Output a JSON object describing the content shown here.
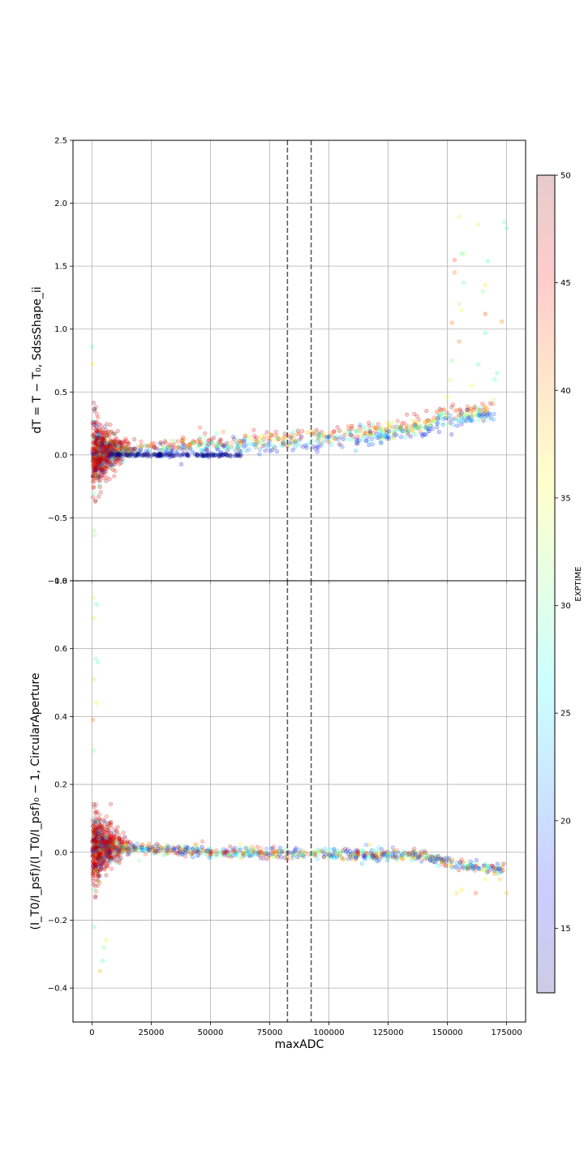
{
  "chart_data": [
    {
      "type": "scatter",
      "ylabel": "dT = T − T₀, SdssShape_ii",
      "xlabel": "",
      "xlim": [
        -8000,
        183000
      ],
      "ylim": [
        -1.0,
        2.5
      ],
      "y_tick_labels": [
        "2.5",
        "2.0",
        "1.5",
        "1.0",
        "0.5",
        "0.0",
        "−0.5",
        "−1.0"
      ],
      "y_ticks": [
        2.5,
        2.0,
        1.5,
        1.0,
        0.5,
        0.0,
        -0.5,
        -1.0
      ],
      "x_ticks": [
        0,
        25000,
        50000,
        75000,
        100000,
        125000,
        150000,
        175000
      ],
      "grid": true,
      "vertical_lines": [
        82500,
        92500
      ],
      "trend": [
        {
          "x": 500,
          "y": 0.0
        },
        {
          "x": 5000,
          "y": 0.03
        },
        {
          "x": 25000,
          "y": 0.05
        },
        {
          "x": 50000,
          "y": 0.07
        },
        {
          "x": 75000,
          "y": 0.1
        },
        {
          "x": 100000,
          "y": 0.13
        },
        {
          "x": 125000,
          "y": 0.18
        },
        {
          "x": 140000,
          "y": 0.22
        },
        {
          "x": 148000,
          "y": 0.3
        },
        {
          "x": 160000,
          "y": 0.32
        },
        {
          "x": 168000,
          "y": 0.35
        }
      ],
      "outliers": [
        {
          "x": 155000,
          "y": 1.89
        },
        {
          "x": 163000,
          "y": 1.83
        },
        {
          "x": 174000,
          "y": 1.85
        },
        {
          "x": 175000,
          "y": 1.8
        },
        {
          "x": 153000,
          "y": 1.55
        },
        {
          "x": 156000,
          "y": 1.6
        },
        {
          "x": 157000,
          "y": 1.6
        },
        {
          "x": 153000,
          "y": 1.45
        },
        {
          "x": 167000,
          "y": 1.54
        },
        {
          "x": 166000,
          "y": 1.35
        },
        {
          "x": 165000,
          "y": 1.3
        },
        {
          "x": 157000,
          "y": 1.37
        },
        {
          "x": 155000,
          "y": 1.2
        },
        {
          "x": 156000,
          "y": 1.15
        },
        {
          "x": 152000,
          "y": 1.05
        },
        {
          "x": 166000,
          "y": 1.12
        },
        {
          "x": 166000,
          "y": 0.97
        },
        {
          "x": 173000,
          "y": 1.06
        },
        {
          "x": 155000,
          "y": 0.9
        },
        {
          "x": 152000,
          "y": 0.75
        },
        {
          "x": 151000,
          "y": 0.6
        },
        {
          "x": 163000,
          "y": 0.72
        },
        {
          "x": 170000,
          "y": 0.6
        },
        {
          "x": 171000,
          "y": 0.65
        },
        {
          "x": 160000,
          "y": 0.55
        },
        {
          "x": 150000,
          "y": 0.46
        },
        {
          "x": 0,
          "y": 0.86
        },
        {
          "x": 300,
          "y": 0.72
        },
        {
          "x": 800,
          "y": -0.6
        },
        {
          "x": 1200,
          "y": -0.64
        }
      ],
      "colorbar": {
        "label": "EXPTIME",
        "range": [
          12,
          50
        ],
        "ticks": [
          15,
          20,
          25,
          30,
          35,
          40,
          45,
          50
        ],
        "colormap": "jet",
        "alpha": 0.2
      }
    },
    {
      "type": "scatter",
      "ylabel": "(I_T0/I_psf)/(I_T0/I_psf)₀ − 1, CircularAperture",
      "xlabel": "maxADC",
      "xlim": [
        -8000,
        183000
      ],
      "ylim": [
        -0.5,
        0.8
      ],
      "y_tick_labels": [
        "0.8",
        "0.6",
        "0.4",
        "0.2",
        "0.0",
        "−0.2",
        "−0.4"
      ],
      "y_ticks": [
        0.8,
        0.6,
        0.4,
        0.2,
        0.0,
        -0.2,
        -0.4
      ],
      "x_ticks": [
        0,
        25000,
        50000,
        75000,
        100000,
        125000,
        150000,
        175000
      ],
      "x_tick_labels": [
        "0",
        "25000",
        "50000",
        "75000",
        "100000",
        "125000",
        "150000",
        "175000"
      ],
      "grid": true,
      "vertical_lines": [
        82500,
        92500
      ],
      "trend": [
        {
          "x": 500,
          "y": 0.0
        },
        {
          "x": 5000,
          "y": 0.02
        },
        {
          "x": 25000,
          "y": 0.01
        },
        {
          "x": 50000,
          "y": 0.0
        },
        {
          "x": 100000,
          "y": -0.005
        },
        {
          "x": 140000,
          "y": -0.01
        },
        {
          "x": 150000,
          "y": -0.03
        },
        {
          "x": 160000,
          "y": -0.04
        },
        {
          "x": 170000,
          "y": -0.05
        }
      ],
      "outliers": [
        {
          "x": 500,
          "y": 0.75
        },
        {
          "x": 2000,
          "y": 0.73
        },
        {
          "x": 1000,
          "y": 0.69
        },
        {
          "x": 1500,
          "y": 0.57
        },
        {
          "x": 2500,
          "y": 0.56
        },
        {
          "x": 1000,
          "y": 0.51
        },
        {
          "x": 2000,
          "y": 0.44
        },
        {
          "x": 500,
          "y": 0.39
        },
        {
          "x": 800,
          "y": 0.3
        },
        {
          "x": 6000,
          "y": -0.26
        },
        {
          "x": 5000,
          "y": -0.28
        },
        {
          "x": 4500,
          "y": -0.32
        },
        {
          "x": 3500,
          "y": -0.35
        },
        {
          "x": 1000,
          "y": -0.22
        },
        {
          "x": 162000,
          "y": -0.12
        },
        {
          "x": 175000,
          "y": -0.12
        },
        {
          "x": 172000,
          "y": -0.08
        },
        {
          "x": 154000,
          "y": -0.12
        },
        {
          "x": 156000,
          "y": -0.11
        },
        {
          "x": 166000,
          "y": -0.08
        }
      ]
    }
  ]
}
